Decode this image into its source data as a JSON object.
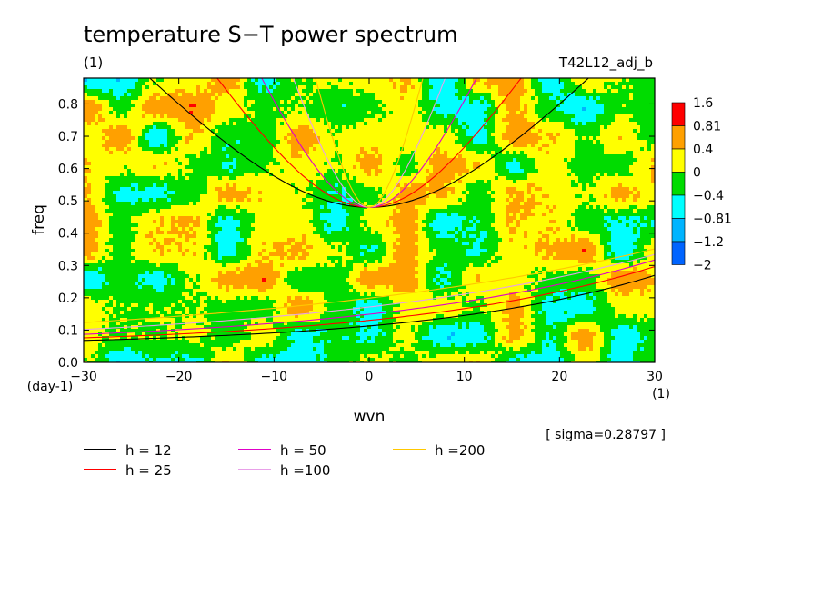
{
  "chart_data": {
    "type": "heatmap",
    "title": "temperature S−T power spectrum",
    "subtitle_left": "(1)",
    "subtitle_right": "T42L12_adj_b",
    "xlabel": "wvn",
    "xunit": "(1)",
    "ylabel": "freq",
    "yunit": "(day-1)",
    "xlim": [
      -30,
      30
    ],
    "ylim": [
      0,
      0.88
    ],
    "x_ticks": [
      -30,
      -20,
      -10,
      0,
      10,
      20,
      30
    ],
    "x_tick_labels": [
      "−30",
      "−20",
      "−10",
      "0",
      "10",
      "20",
      "30"
    ],
    "y_ticks": [
      0.0,
      0.1,
      0.2,
      0.3,
      0.4,
      0.5,
      0.6,
      0.7,
      0.8
    ],
    "y_tick_labels": [
      "0.0",
      "0.1",
      "0.2",
      "0.3",
      "0.4",
      "0.5",
      "0.6",
      "0.7",
      "0.8"
    ],
    "colorbar": {
      "labels": [
        "1.6",
        "0.81",
        "0.4",
        "0",
        "−0.4",
        "−0.81",
        "−1.2",
        "−2"
      ],
      "colors": [
        "#ff0000",
        "#ffa000",
        "#ffff00",
        "#00dc00",
        "#00ffff",
        "#00b4ff",
        "#0064ff"
      ]
    },
    "field_levels": [
      -2,
      -1.2,
      -0.81,
      -0.4,
      0,
      0.4,
      0.81,
      1.6
    ],
    "field_colors": [
      "#0064ff",
      "#00b4ff",
      "#00ffff",
      "#00dc00",
      "#ffff00",
      "#ffa000",
      "#ff0000"
    ],
    "annotation": "[ sigma=0.28797 ]",
    "dispersion_curves": [
      {
        "name": "h = 12",
        "h": 12,
        "color": "#000000"
      },
      {
        "name": "h = 25",
        "h": 25,
        "color": "#ff0000"
      },
      {
        "name": "h = 50",
        "h": 50,
        "color": "#e000c8"
      },
      {
        "name": "h =100",
        "h": 100,
        "color": "#e8a0e8"
      },
      {
        "name": "h =200",
        "h": 200,
        "color": "#ffc800"
      }
    ]
  }
}
